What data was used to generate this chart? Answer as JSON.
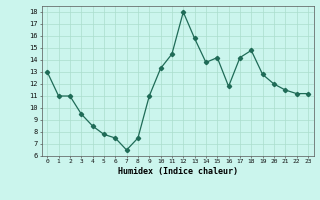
{
  "x": [
    0,
    1,
    2,
    3,
    4,
    5,
    6,
    7,
    8,
    9,
    10,
    11,
    12,
    13,
    14,
    15,
    16,
    17,
    18,
    19,
    20,
    21,
    22,
    23
  ],
  "y": [
    13,
    11,
    11,
    9.5,
    8.5,
    7.8,
    7.5,
    6.5,
    7.5,
    11,
    13.3,
    14.5,
    18,
    15.8,
    13.8,
    14.2,
    11.8,
    14.2,
    14.8,
    12.8,
    12,
    11.5,
    11.2,
    11.2
  ],
  "xlabel": "Humidex (Indice chaleur)",
  "line_color": "#1f6b57",
  "marker": "D",
  "marker_size": 2.2,
  "bg_color": "#cbf5ed",
  "grid_color": "#aaddcc",
  "xlim": [
    -0.5,
    23.5
  ],
  "ylim": [
    6,
    18.5
  ],
  "xticks": [
    0,
    1,
    2,
    3,
    4,
    5,
    6,
    7,
    8,
    9,
    10,
    11,
    12,
    13,
    14,
    15,
    16,
    17,
    18,
    19,
    20,
    21,
    22,
    23
  ],
  "yticks": [
    6,
    7,
    8,
    9,
    10,
    11,
    12,
    13,
    14,
    15,
    16,
    17,
    18
  ]
}
